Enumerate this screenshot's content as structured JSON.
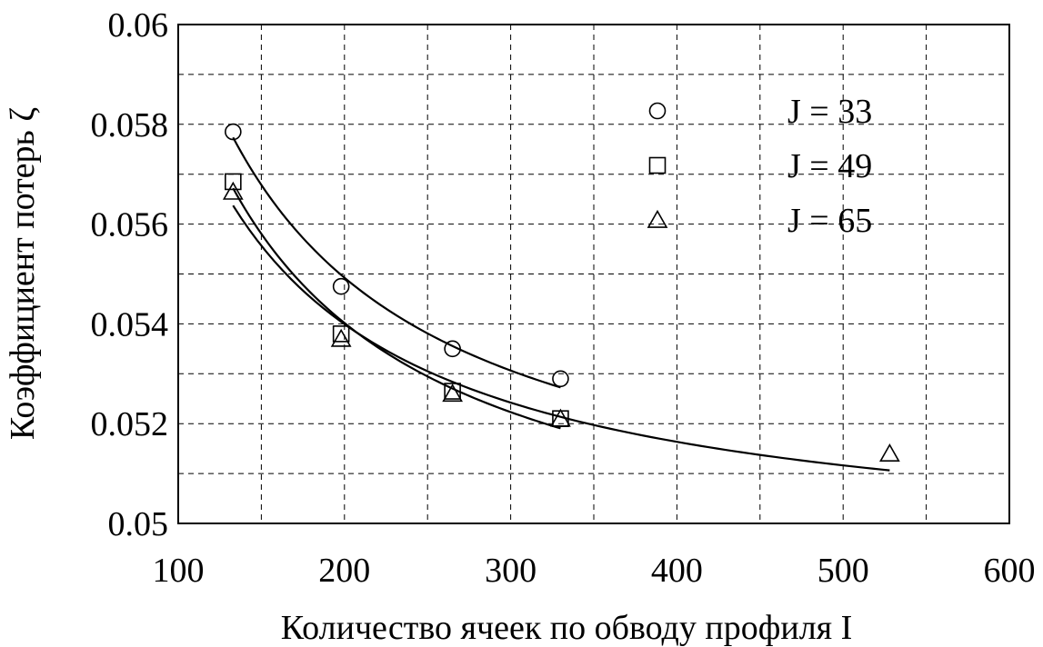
{
  "chart_data": {
    "type": "scatter",
    "xlabel": "Количество ячеек по обводу профиля I",
    "ylabel": "Коэффициент потерь ζ",
    "xlim": [
      100,
      600
    ],
    "ylim": [
      0.05,
      0.06
    ],
    "x_ticks": [
      "100",
      "200",
      "300",
      "400",
      "500",
      "600"
    ],
    "y_ticks": [
      "0.05",
      "0.052",
      "0.054",
      "0.056",
      "0.058",
      "0.06"
    ],
    "grid": true,
    "legend_position": "top-right",
    "series": [
      {
        "name": "J = 33",
        "marker": "circle",
        "x": [
          133,
          198,
          265,
          330
        ],
        "y": [
          0.05785,
          0.05475,
          0.0535,
          0.0529
        ]
      },
      {
        "name": "J = 49",
        "marker": "square",
        "x": [
          133,
          198,
          265,
          330
        ],
        "y": [
          0.05685,
          0.0538,
          0.05265,
          0.0521
        ]
      },
      {
        "name": "J = 65",
        "marker": "triangle",
        "x": [
          133,
          198,
          265,
          330,
          528
        ],
        "y": [
          0.05665,
          0.0537,
          0.0526,
          0.0521,
          0.0514
        ]
      }
    ]
  }
}
